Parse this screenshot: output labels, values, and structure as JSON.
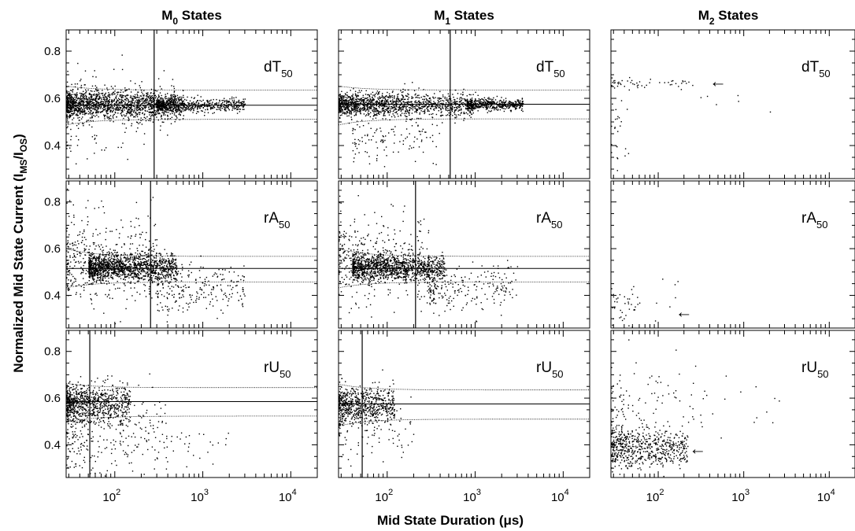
{
  "chart_data": {
    "type": "scatter",
    "layout": "3x3 grid of scatter panels; columns are states, rows are molecules",
    "columns": [
      {
        "title": "M",
        "subscript": "0",
        "suffix": " States"
      },
      {
        "title": "M",
        "subscript": "1",
        "suffix": " States"
      },
      {
        "title": "M",
        "subscript": "2",
        "suffix": " States"
      }
    ],
    "rows": [
      {
        "label": "dT",
        "subscript": "50"
      },
      {
        "label": "rA",
        "subscript": "50"
      },
      {
        "label": "rU",
        "subscript": "50"
      }
    ],
    "xlabel": "Mid State Duration (μs)",
    "ylabel": {
      "prefix": "Normalized Mid State Current (I",
      "sub1": "MS",
      "mid": "/I",
      "sub2": "OS",
      "suffix": ")"
    },
    "x_scale": "log",
    "xlim": [
      28,
      20000
    ],
    "x_ticks": [
      {
        "base": "10",
        "exp": "2",
        "value": 100
      },
      {
        "base": "10",
        "exp": "3",
        "value": 1000
      },
      {
        "base": "10",
        "exp": "4",
        "value": 10000
      }
    ],
    "ylim": [
      0.26,
      0.89
    ],
    "y_ticks": [
      "0.8",
      "0.6",
      "0.4"
    ],
    "y_tick_values": [
      0.8,
      0.6,
      0.4
    ],
    "arrow_glyph": "←",
    "panels": [
      {
        "row": 0,
        "col": 0,
        "vline_x": 280,
        "mean": 0.571,
        "band": [
          0.511,
          0.635
        ],
        "band_start": [
          0.487,
          0.652
        ],
        "clusters": [
          {
            "n": 1500,
            "xr": [
              28,
              600
            ],
            "yc": 0.575,
            "ys": 0.028
          },
          {
            "n": 600,
            "xr": [
              300,
              3000
            ],
            "yc": 0.571,
            "ys": 0.014
          },
          {
            "n": 220,
            "xr": [
              28,
              500
            ],
            "yc": 0.56,
            "ys": 0.09
          }
        ]
      },
      {
        "row": 0,
        "col": 1,
        "vline_x": 520,
        "mean": 0.575,
        "band": [
          0.513,
          0.635
        ],
        "band_start": [
          0.487,
          0.652
        ],
        "clusters": [
          {
            "n": 1400,
            "xr": [
              28,
              1000
            ],
            "yc": 0.575,
            "ys": 0.025
          },
          {
            "n": 500,
            "xr": [
              800,
              3500
            ],
            "yc": 0.575,
            "ys": 0.012
          },
          {
            "n": 120,
            "xr": [
              40,
              400
            ],
            "yc": 0.43,
            "ys": 0.05
          }
        ]
      },
      {
        "row": 0,
        "col": 2,
        "arrow_x": 500,
        "arrow_y": 0.668,
        "clusters": [
          {
            "n": 50,
            "xr": [
              28,
              250
            ],
            "yc": 0.665,
            "ys": 0.01
          },
          {
            "n": 25,
            "xr": [
              28,
              45
            ],
            "yc": 0.48,
            "ys": 0.1
          },
          {
            "n": 6,
            "xr": [
              300,
              2500
            ],
            "yc": 0.58,
            "ys": 0.03
          }
        ]
      },
      {
        "row": 1,
        "col": 0,
        "vline_x": 255,
        "mean": 0.515,
        "band": [
          0.457,
          0.567
        ],
        "band_start": [
          0.432,
          0.6
        ],
        "clusters": [
          {
            "n": 1300,
            "xr": [
              50,
              500
            ],
            "yc": 0.522,
            "ys": 0.028
          },
          {
            "n": 420,
            "xr": [
              28,
              300
            ],
            "yc": 0.56,
            "ys": 0.1
          },
          {
            "n": 250,
            "xr": [
              300,
              3000
            ],
            "yc": 0.43,
            "ys": 0.05
          }
        ]
      },
      {
        "row": 1,
        "col": 1,
        "vline_x": 210,
        "mean": 0.515,
        "band": [
          0.457,
          0.567
        ],
        "band_start": [
          0.432,
          0.6
        ],
        "clusters": [
          {
            "n": 1200,
            "xr": [
              40,
              450
            ],
            "yc": 0.522,
            "ys": 0.028
          },
          {
            "n": 350,
            "xr": [
              28,
              300
            ],
            "yc": 0.55,
            "ys": 0.1
          },
          {
            "n": 220,
            "xr": [
              300,
              3000
            ],
            "yc": 0.43,
            "ys": 0.05
          }
        ]
      },
      {
        "row": 1,
        "col": 2,
        "arrow_x": 200,
        "arrow_y": 0.326,
        "clusters": [
          {
            "n": 45,
            "xr": [
              28,
              60
            ],
            "yc": 0.34,
            "ys": 0.05
          },
          {
            "n": 8,
            "xr": [
              80,
              180
            ],
            "yc": 0.37,
            "ys": 0.06
          }
        ]
      },
      {
        "row": 2,
        "col": 0,
        "vline_x": 52,
        "mean": 0.585,
        "band": [
          0.523,
          0.645
        ],
        "band_start": [
          0.497,
          0.663
        ],
        "clusters": [
          {
            "n": 800,
            "xr": [
              28,
              150
            ],
            "yc": 0.58,
            "ys": 0.04
          },
          {
            "n": 280,
            "xr": [
              28,
              400
            ],
            "yc": 0.45,
            "ys": 0.09
          },
          {
            "n": 25,
            "xr": [
              400,
              2000
            ],
            "yc": 0.4,
            "ys": 0.04
          }
        ]
      },
      {
        "row": 2,
        "col": 1,
        "vline_x": 52,
        "mean": 0.575,
        "band": [
          0.51,
          0.635
        ],
        "band_start": [
          0.48,
          0.66
        ],
        "clusters": [
          {
            "n": 650,
            "xr": [
              28,
              120
            ],
            "yc": 0.57,
            "ys": 0.04
          },
          {
            "n": 90,
            "xr": [
              28,
              200
            ],
            "yc": 0.47,
            "ys": 0.07
          }
        ]
      },
      {
        "row": 2,
        "col": 2,
        "arrow_x": 290,
        "arrow_y": 0.38,
        "clusters": [
          {
            "n": 600,
            "xr": [
              28,
              220
            ],
            "yc": 0.39,
            "ys": 0.04
          },
          {
            "n": 110,
            "xr": [
              28,
              400
            ],
            "yc": 0.58,
            "ys": 0.1
          },
          {
            "n": 12,
            "xr": [
              400,
              3500
            ],
            "yc": 0.55,
            "ys": 0.08
          }
        ]
      }
    ]
  }
}
